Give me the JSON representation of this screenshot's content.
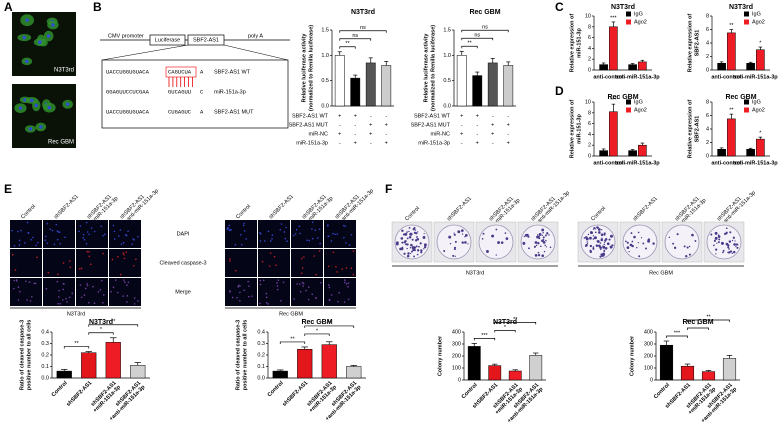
{
  "panel_labels": [
    "A",
    "B",
    "C",
    "D",
    "E",
    "F"
  ],
  "panel_a": {
    "images": [
      "N3T3rd",
      "Rec GBM"
    ]
  },
  "panel_b": {
    "construct": [
      "CMV promoter",
      "Luciferase",
      "SBF2-AS1",
      "poly A"
    ],
    "sequences": [
      [
        "UACCUGGUGUACA",
        "CAGUCUA",
        "A",
        "SBF2-AS1 WT"
      ],
      [
        "GGAGUUCCUCGAA",
        "GUCAGUU",
        "C",
        "miR-151a-3p"
      ],
      [
        "UACCUGGUGUACA",
        "CUGAGUC",
        "A",
        "SBF2-AS1 MUT"
      ]
    ]
  },
  "panel_e": {
    "columns": [
      [
        "Control"
      ],
      [
        "shSBF2-AS1"
      ],
      [
        "shSBF2-AS1",
        "+miR-151a-3p"
      ],
      [
        "shSBF2-AS1",
        "+anti-miR-151a-3p"
      ]
    ],
    "rows": [
      "DAPI",
      "Cleaved caspase-3",
      "Merge"
    ],
    "groups": [
      "N3T3rd",
      "Rec GBM"
    ]
  },
  "panel_f": {
    "columns": [
      [
        "Control"
      ],
      [
        "shSBF2-AS1"
      ],
      [
        "shSBF2-AS1",
        "+miR-151a-3p"
      ],
      [
        "shSBF2-AS1",
        "+anti-miR-151a-3p"
      ]
    ],
    "groups": [
      "N3T3rd",
      "Rec GBM"
    ]
  },
  "chart_data": [
    {
      "type": "bar",
      "title": "N3T3rd",
      "ylabel": [
        "Relative luciferase activity",
        "(normalized to Renilla luciferase)"
      ],
      "values": [
        1.0,
        0.55,
        0.85,
        0.8
      ],
      "errors": [
        0.07,
        0.06,
        0.1,
        0.08
      ],
      "colors": [
        "#ffffff",
        "#000000",
        "#555555",
        "#cccccc"
      ],
      "ylim": [
        0,
        1.5
      ],
      "yticks": [
        {
          "value": 0,
          "label": "0.0"
        },
        0.5,
        {
          "value": 1,
          "label": "1.0"
        },
        1.5
      ],
      "annotations": [
        "**",
        "ns",
        "ns"
      ],
      "conditions": [
        {
          "label": "SBF2-AS1 WT",
          "marks": [
            "+",
            "+",
            "-",
            "-"
          ]
        },
        {
          "label": "SBF2-AS1 MUT",
          "marks": [
            "-",
            "-",
            "+",
            "+"
          ]
        },
        {
          "label": "miR-NC",
          "marks": [
            "+",
            "-",
            "+",
            "-"
          ]
        },
        {
          "label": "miR-151a-3p",
          "marks": [
            "-",
            "+",
            "-",
            "+"
          ]
        }
      ]
    },
    {
      "type": "bar",
      "title": "Rec GBM",
      "ylabel": [
        "Relative luciferase activity",
        "(normalized to Renilla luciferase)"
      ],
      "values": [
        1.0,
        0.6,
        0.85,
        0.8
      ],
      "errors": [
        0.08,
        0.07,
        0.09,
        0.07
      ],
      "colors": [
        "#ffffff",
        "#000000",
        "#555555",
        "#cccccc"
      ],
      "ylim": [
        0,
        1.5
      ],
      "yticks": [
        {
          "value": 0,
          "label": "0.0"
        },
        0.5,
        {
          "value": 1,
          "label": "1.0"
        },
        1.5
      ],
      "annotations": [
        "**",
        "ns",
        "ns"
      ],
      "conditions": [
        {
          "label": "SBF2-AS1 WT",
          "marks": [
            "+",
            "+",
            "-",
            "-"
          ]
        },
        {
          "label": "SBF2-AS1 MUT",
          "marks": [
            "-",
            "-",
            "+",
            "+"
          ]
        },
        {
          "label": "miR-NC",
          "marks": [
            "+",
            "-",
            "+",
            "-"
          ]
        },
        {
          "label": "miR-151a-3p",
          "marks": [
            "-",
            "+",
            "-",
            "+"
          ]
        }
      ]
    },
    {
      "type": "bar",
      "title": "N3T3rd",
      "ylabel": [
        "Relative expression of",
        "miR-151-3p"
      ],
      "categories": [
        "anti-control",
        "anti-miR-151a-3p"
      ],
      "series": [
        {
          "name": "IgG",
          "color": "#000000",
          "values": [
            1,
            1
          ],
          "errors": [
            0.3,
            0.2
          ]
        },
        {
          "name": "Ago2",
          "color": "#ee1c25",
          "values": [
            8,
            1.5
          ],
          "errors": [
            0.9,
            0.3
          ]
        }
      ],
      "ylim": [
        0,
        10
      ],
      "yticks": [
        0,
        2,
        4,
        6,
        8,
        10
      ],
      "annotations": [
        "***"
      ]
    },
    {
      "type": "bar",
      "title": "N3T3rd",
      "ylabel": [
        "Relative expression of",
        "SBF2-AS1"
      ],
      "categories": [
        "anti-control",
        "anti-miR-151a-3p"
      ],
      "series": [
        {
          "name": "IgG",
          "color": "#000000",
          "values": [
            1,
            1
          ],
          "errors": [
            0.2,
            0.15
          ]
        },
        {
          "name": "Ago2",
          "color": "#ee1c25",
          "values": [
            5.5,
            3
          ],
          "errors": [
            0.5,
            0.4
          ]
        }
      ],
      "ylim": [
        0,
        8
      ],
      "yticks": [
        0,
        2,
        4,
        6,
        8
      ],
      "annotations": [
        "**",
        "*"
      ]
    },
    {
      "type": "bar",
      "title": "Rec GBM",
      "ylabel": [
        "Relative expression of",
        "miR-151-3p"
      ],
      "categories": [
        "anti-control",
        "anti-miR-151a-3p"
      ],
      "series": [
        {
          "name": "IgG",
          "color": "#000000",
          "values": [
            1,
            1
          ],
          "errors": [
            0.3,
            0.2
          ]
        },
        {
          "name": "Ago2",
          "color": "#ee1c25",
          "values": [
            8.2,
            2
          ],
          "errors": [
            1.4,
            0.4
          ]
        }
      ],
      "ylim": [
        0,
        10
      ],
      "yticks": [
        0,
        2,
        4,
        6,
        8,
        10
      ],
      "annotations": [
        "***"
      ]
    },
    {
      "type": "bar",
      "title": "Rec GBM",
      "ylabel": [
        "Relative expression of",
        "SBF2-AS1"
      ],
      "categories": [
        "anti-control",
        "anti-miR-151a-3p"
      ],
      "series": [
        {
          "name": "IgG",
          "color": "#000000",
          "values": [
            1,
            1
          ],
          "errors": [
            0.2,
            0.15
          ]
        },
        {
          "name": "Ago2",
          "color": "#ee1c25",
          "values": [
            5.5,
            2.5
          ],
          "errors": [
            0.7,
            0.3
          ]
        }
      ],
      "ylim": [
        0,
        8
      ],
      "yticks": [
        0,
        2,
        4,
        6,
        8
      ],
      "annotations": [
        "**",
        "*"
      ]
    },
    {
      "type": "bar",
      "title": "N3T3rd",
      "ylabel": [
        "Ratio of cleaved caspase-3",
        "positive number to all cells"
      ],
      "categories": [
        [
          "Control"
        ],
        [
          "shSBF2-AS1"
        ],
        [
          "shSBF2-AS1",
          "+miR-151a-3p"
        ],
        [
          "shSBF2-AS1",
          "+anti-miR-151a-3p"
        ]
      ],
      "values": [
        0.06,
        0.22,
        0.31,
        0.11
      ],
      "errors": [
        0.015,
        0.01,
        0.04,
        0.025
      ],
      "colors": [
        "#000000",
        "#e2161b",
        "#ee1c25",
        "#d0d0d0"
      ],
      "ylim": [
        0,
        0.4
      ],
      "yticks": [
        {
          "value": 0,
          "label": "0.0"
        },
        0.1,
        0.2,
        0.3,
        0.4
      ],
      "annotations": [
        "**",
        "*",
        "**"
      ]
    },
    {
      "type": "bar",
      "title": "Rec GBM",
      "ylabel": [
        "Ratio of cleaved caspase-3",
        "positive number to all cells"
      ],
      "categories": [
        [
          "Control"
        ],
        [
          "shSBF2-AS1"
        ],
        [
          "shSBF2-AS1",
          "+miR-151a-3p"
        ],
        [
          "shSBF2-AS1",
          "+anti-miR-151a-3p"
        ]
      ],
      "values": [
        0.06,
        0.25,
        0.29,
        0.1
      ],
      "errors": [
        0.01,
        0.02,
        0.025,
        0.01
      ],
      "colors": [
        "#000000",
        "#e2161b",
        "#ee1c25",
        "#d0d0d0"
      ],
      "ylim": [
        0,
        0.4
      ],
      "yticks": [
        {
          "value": 0,
          "label": "0.0"
        },
        0.1,
        0.2,
        0.3,
        0.4
      ],
      "annotations": [
        "**",
        "*",
        "**"
      ]
    },
    {
      "type": "bar",
      "title": "N3T3rd",
      "ylabel": [
        "Colony number"
      ],
      "categories": [
        [
          "Control"
        ],
        [
          "shSBF2-AS1"
        ],
        [
          "shSBF2-AS1",
          "+miR-151a-3p"
        ],
        [
          "shSBF2-AS1",
          "+anti-miR-151a-3p"
        ]
      ],
      "values": [
        280,
        120,
        75,
        205
      ],
      "errors": [
        25,
        12,
        10,
        20
      ],
      "colors": [
        "#000000",
        "#e2161b",
        "#ee1c25",
        "#d0d0d0"
      ],
      "ylim": [
        0,
        400
      ],
      "yticks": [
        0,
        100,
        200,
        300,
        400
      ],
      "annotations": [
        "***",
        "*",
        "**"
      ]
    },
    {
      "type": "bar",
      "title": "Rec GBM",
      "ylabel": [
        "Colony number"
      ],
      "categories": [
        [
          "Control"
        ],
        [
          "shSBF2-AS1"
        ],
        [
          "shSBF2-AS1",
          "+miR-151a-3p"
        ],
        [
          "shSBF2-AS1",
          "+anti-miR-151a-3p"
        ]
      ],
      "values": [
        290,
        115,
        70,
        180
      ],
      "errors": [
        35,
        18,
        10,
        25
      ],
      "colors": [
        "#000000",
        "#e2161b",
        "#ee1c25",
        "#d0d0d0"
      ],
      "ylim": [
        0,
        400
      ],
      "yticks": [
        0,
        100,
        200,
        300,
        400
      ],
      "annotations": [
        "***",
        "*",
        "**"
      ]
    }
  ]
}
